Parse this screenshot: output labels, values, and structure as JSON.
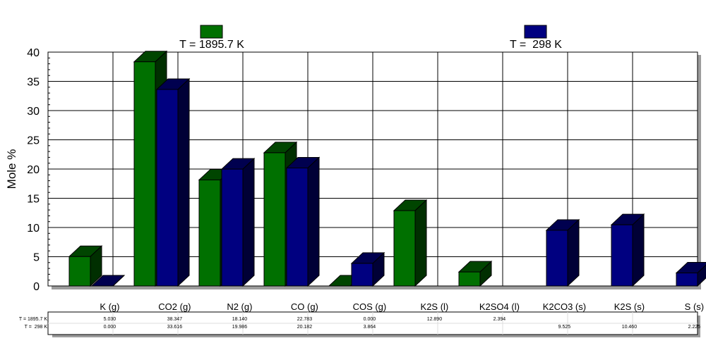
{
  "chart_data": {
    "type": "bar",
    "ylabel": "Mole %",
    "ylim": [
      0,
      40
    ],
    "yticks": [
      0,
      5,
      10,
      15,
      20,
      25,
      30,
      35,
      40
    ],
    "categories": [
      "K (g)",
      "CO2 (g)",
      "N2 (g)",
      "CO (g)",
      "COS (g)",
      "K2S (l)",
      "K2SO4 (l)",
      "K2CO3 (s)",
      "K2S (s)",
      "S (s)"
    ],
    "series": [
      {
        "name": "T = 1895.7 K",
        "table_label": "T = 1895.7 K",
        "color": "#007000",
        "values": [
          5.03,
          38.347,
          18.14,
          22.783,
          0.0,
          12.89,
          2.394,
          null,
          null,
          null
        ],
        "labels": [
          "5.030",
          "38.347",
          "18.140",
          "22.783",
          "0.000",
          "12.890",
          "2.394",
          "",
          "",
          ""
        ]
      },
      {
        "name": "T =  298 K",
        "table_label": "T =  298 K",
        "color": "#000080",
        "values": [
          0.0,
          33.616,
          19.986,
          20.182,
          3.864,
          null,
          null,
          9.525,
          10.46,
          2.225
        ],
        "labels": [
          "0.000",
          "33.616",
          "19.986",
          "20.182",
          "3.864",
          "",
          "",
          "9.525",
          "10.460",
          "2.225"
        ]
      }
    ],
    "grid": true,
    "legend": "top"
  }
}
